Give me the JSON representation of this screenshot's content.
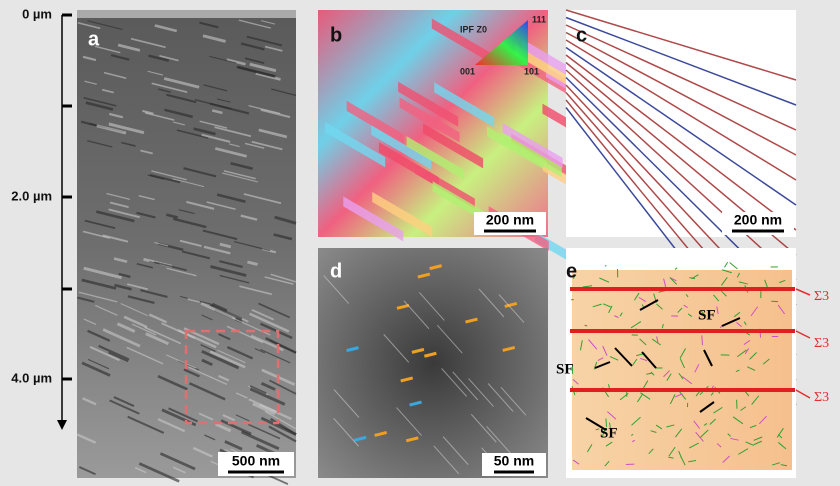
{
  "depth_axis": {
    "labels": [
      "0 µm",
      "2.0 µm",
      "4.0 µm"
    ]
  },
  "panels": [
    {
      "label": "a",
      "scale_bar": "500 nm"
    },
    {
      "label": "b",
      "scale_bar": "200 nm",
      "legend": {
        "title": "IPF Z0",
        "corners": [
          "111",
          "001",
          "101"
        ]
      }
    },
    {
      "label": "c",
      "scale_bar": "200 nm"
    },
    {
      "label": "d",
      "scale_bar": "50 nm"
    },
    {
      "label": "e",
      "annotations": [
        "SF",
        "SF",
        "SF"
      ],
      "boundary_labels": [
        "Σ3",
        "Σ3",
        "Σ3"
      ]
    }
  ]
}
